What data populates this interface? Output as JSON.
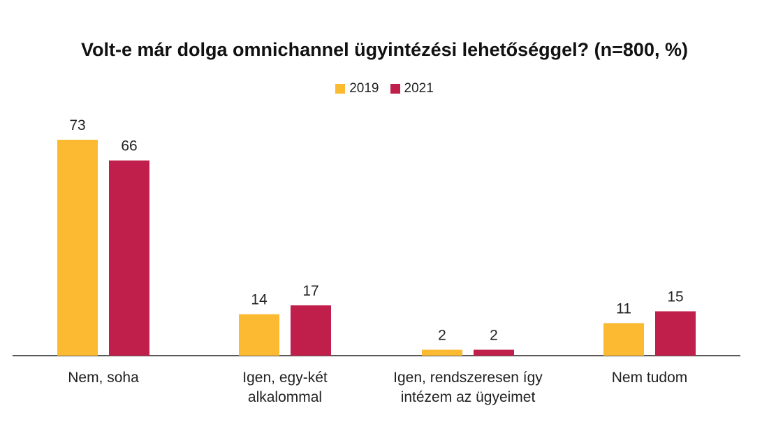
{
  "chart_data": {
    "type": "bar",
    "title": "Volt-e már dolga omnichannel ügyintézési lehetőséggel? (n=800, %)",
    "categories": [
      [
        "Nem, soha"
      ],
      [
        "Igen, egy-két",
        "alkalommal"
      ],
      [
        "Igen, rendszeresen így",
        "intézem az ügyeimet"
      ],
      [
        "Nem tudom"
      ]
    ],
    "series": [
      {
        "name": "2019",
        "color": "#FBBA32",
        "values": [
          73,
          14,
          2,
          11
        ]
      },
      {
        "name": "2021",
        "color": "#C01F4B",
        "values": [
          66,
          17,
          2,
          15
        ]
      }
    ],
    "xlabel": "",
    "ylabel": "",
    "ylim": [
      0,
      73
    ],
    "grid": false,
    "legend": "top-center",
    "data_labels": true
  }
}
